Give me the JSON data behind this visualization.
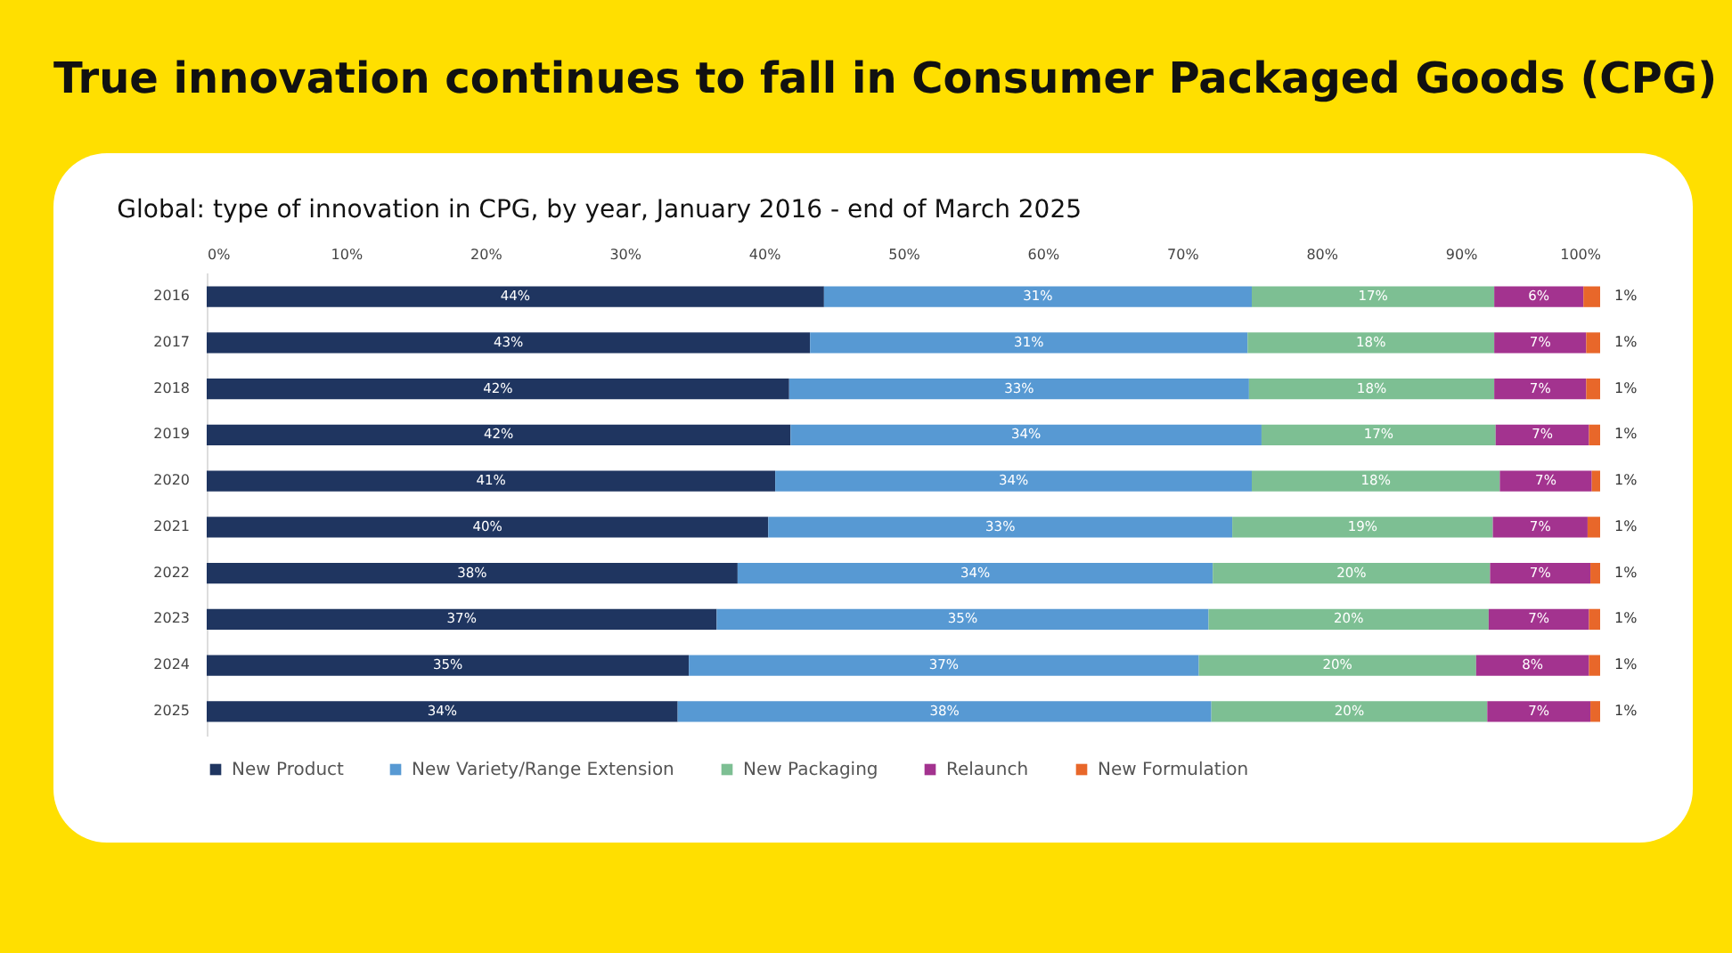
{
  "chart_data": {
    "type": "bar",
    "orientation": "horizontal",
    "stacked": true,
    "legend": "bottom",
    "grid": false,
    "title": "True innovation continues to fall in Consumer Packaged Goods (CPG)",
    "subtitle": "Global: type of innovation in CPG, by year, January 2016 - end of March 2025",
    "categories": [
      "2016",
      "2017",
      "2018",
      "2019",
      "2020",
      "2021",
      "2022",
      "2023",
      "2024",
      "2025"
    ],
    "xlim": [
      0,
      100
    ],
    "xticks": [
      {
        "value": 0,
        "label": "0%"
      },
      {
        "value": 10,
        "label": "10%"
      },
      {
        "value": 20,
        "label": "20%"
      },
      {
        "value": 30,
        "label": "30%"
      },
      {
        "value": 40,
        "label": "40%"
      },
      {
        "value": 50,
        "label": "50%"
      },
      {
        "value": 60,
        "label": "60%"
      },
      {
        "value": 70,
        "label": "70%"
      },
      {
        "value": 80,
        "label": "80%"
      },
      {
        "value": 90,
        "label": "90%"
      },
      {
        "value": 100,
        "label": "100%"
      }
    ],
    "series": [
      {
        "name": "New Product",
        "color": "#1f3560",
        "values": [
          44.3,
          43.3,
          41.8,
          41.9,
          40.8,
          40.3,
          38.1,
          36.6,
          34.6,
          33.8
        ],
        "value_labels": [
          "44%",
          "43%",
          "42%",
          "42%",
          "41%",
          "40%",
          "38%",
          "37%",
          "35%",
          "34%"
        ]
      },
      {
        "name": "New Variety/Range Extension",
        "color": "#5799d3",
        "values": [
          30.7,
          31.4,
          33.0,
          33.8,
          34.2,
          33.3,
          34.1,
          35.3,
          36.6,
          38.3
        ],
        "value_labels": [
          "31%",
          "31%",
          "33%",
          "34%",
          "34%",
          "33%",
          "34%",
          "35%",
          "37%",
          "38%"
        ]
      },
      {
        "name": "New Packaging",
        "color": "#7dbf93",
        "values": [
          17.4,
          17.7,
          17.6,
          16.8,
          17.8,
          18.7,
          19.9,
          20.1,
          19.9,
          19.8
        ],
        "value_labels": [
          "17%",
          "18%",
          "18%",
          "17%",
          "18%",
          "19%",
          "20%",
          "20%",
          "20%",
          "20%"
        ]
      },
      {
        "name": "Relaunch",
        "color": "#a3338f",
        "values": [
          6.4,
          6.6,
          6.6,
          6.7,
          6.6,
          6.8,
          7.2,
          7.2,
          8.1,
          7.4
        ],
        "value_labels": [
          "6%",
          "7%",
          "7%",
          "7%",
          "7%",
          "7%",
          "7%",
          "7%",
          "8%",
          "7%"
        ]
      },
      {
        "name": "New Formulation",
        "color": "#e8672a",
        "values": [
          1.2,
          1.0,
          1.0,
          0.8,
          0.6,
          0.9,
          0.7,
          0.8,
          0.8,
          0.7
        ],
        "value_labels": [
          "1%",
          "1%",
          "1%",
          "1%",
          "1%",
          "1%",
          "1%",
          "1%",
          "1%",
          "1%"
        ]
      }
    ]
  }
}
